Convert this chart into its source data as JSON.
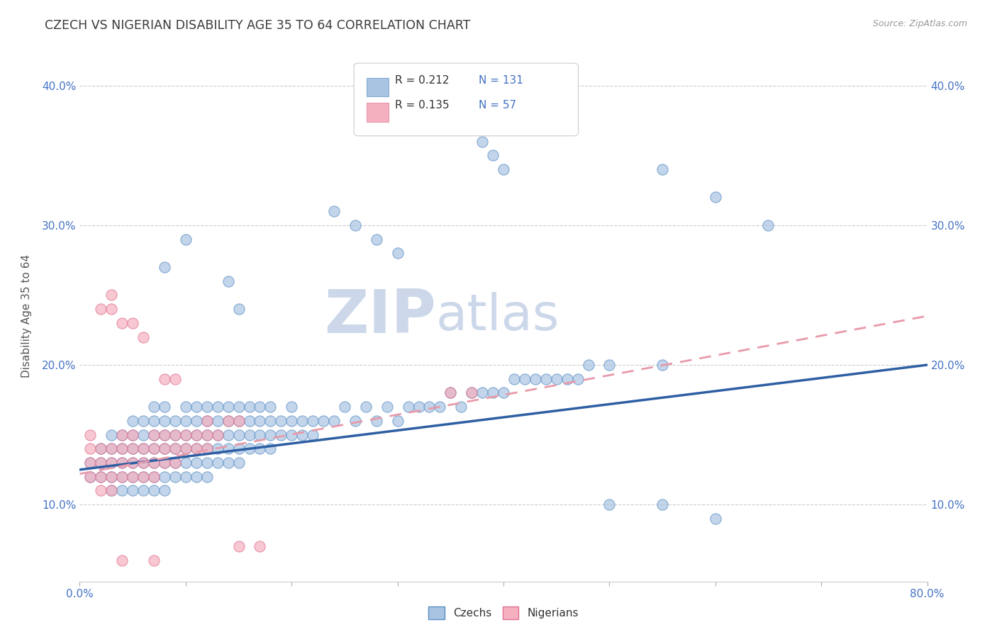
{
  "title": "CZECH VS NIGERIAN DISABILITY AGE 35 TO 64 CORRELATION CHART",
  "source_text": "Source: ZipAtlas.com",
  "ylabel": "Disability Age 35 to 64",
  "xlim": [
    0.0,
    0.8
  ],
  "ylim": [
    0.045,
    0.425
  ],
  "czech_R": 0.212,
  "czech_N": 131,
  "nigerian_R": 0.135,
  "nigerian_N": 57,
  "czech_color": "#a8c4e2",
  "czech_edge_color": "#5b8ec4",
  "nigerian_color": "#f5b0c0",
  "nigerian_edge_color": "#e07090",
  "czech_line_color": "#2e5fa3",
  "nigerian_line_color": "#e89aaa",
  "watermark_color": "#ccd8ea",
  "legend_label_czech": "Czechs",
  "legend_label_nigerian": "Nigerians",
  "ytick_positions": [
    0.1,
    0.2,
    0.3,
    0.4
  ],
  "ytick_labels": [
    "10.0%",
    "20.0%",
    "30.0%",
    "40.0%"
  ],
  "czech_scatter": [
    [
      0.01,
      0.13
    ],
    [
      0.01,
      0.12
    ],
    [
      0.02,
      0.12
    ],
    [
      0.02,
      0.13
    ],
    [
      0.02,
      0.14
    ],
    [
      0.03,
      0.11
    ],
    [
      0.03,
      0.12
    ],
    [
      0.03,
      0.13
    ],
    [
      0.03,
      0.14
    ],
    [
      0.03,
      0.15
    ],
    [
      0.04,
      0.11
    ],
    [
      0.04,
      0.12
    ],
    [
      0.04,
      0.13
    ],
    [
      0.04,
      0.14
    ],
    [
      0.04,
      0.15
    ],
    [
      0.05,
      0.11
    ],
    [
      0.05,
      0.12
    ],
    [
      0.05,
      0.13
    ],
    [
      0.05,
      0.14
    ],
    [
      0.05,
      0.15
    ],
    [
      0.05,
      0.16
    ],
    [
      0.06,
      0.11
    ],
    [
      0.06,
      0.12
    ],
    [
      0.06,
      0.13
    ],
    [
      0.06,
      0.14
    ],
    [
      0.06,
      0.15
    ],
    [
      0.06,
      0.16
    ],
    [
      0.07,
      0.11
    ],
    [
      0.07,
      0.12
    ],
    [
      0.07,
      0.13
    ],
    [
      0.07,
      0.14
    ],
    [
      0.07,
      0.15
    ],
    [
      0.07,
      0.16
    ],
    [
      0.07,
      0.17
    ],
    [
      0.08,
      0.11
    ],
    [
      0.08,
      0.12
    ],
    [
      0.08,
      0.13
    ],
    [
      0.08,
      0.14
    ],
    [
      0.08,
      0.15
    ],
    [
      0.08,
      0.16
    ],
    [
      0.08,
      0.17
    ],
    [
      0.09,
      0.12
    ],
    [
      0.09,
      0.13
    ],
    [
      0.09,
      0.14
    ],
    [
      0.09,
      0.15
    ],
    [
      0.09,
      0.16
    ],
    [
      0.1,
      0.12
    ],
    [
      0.1,
      0.13
    ],
    [
      0.1,
      0.14
    ],
    [
      0.1,
      0.15
    ],
    [
      0.1,
      0.16
    ],
    [
      0.1,
      0.17
    ],
    [
      0.11,
      0.12
    ],
    [
      0.11,
      0.13
    ],
    [
      0.11,
      0.14
    ],
    [
      0.11,
      0.15
    ],
    [
      0.11,
      0.16
    ],
    [
      0.11,
      0.17
    ],
    [
      0.12,
      0.12
    ],
    [
      0.12,
      0.13
    ],
    [
      0.12,
      0.14
    ],
    [
      0.12,
      0.15
    ],
    [
      0.12,
      0.16
    ],
    [
      0.12,
      0.17
    ],
    [
      0.13,
      0.13
    ],
    [
      0.13,
      0.14
    ],
    [
      0.13,
      0.15
    ],
    [
      0.13,
      0.16
    ],
    [
      0.13,
      0.17
    ],
    [
      0.14,
      0.13
    ],
    [
      0.14,
      0.14
    ],
    [
      0.14,
      0.15
    ],
    [
      0.14,
      0.16
    ],
    [
      0.14,
      0.17
    ],
    [
      0.15,
      0.13
    ],
    [
      0.15,
      0.14
    ],
    [
      0.15,
      0.15
    ],
    [
      0.15,
      0.16
    ],
    [
      0.15,
      0.17
    ],
    [
      0.16,
      0.14
    ],
    [
      0.16,
      0.15
    ],
    [
      0.16,
      0.16
    ],
    [
      0.16,
      0.17
    ],
    [
      0.17,
      0.14
    ],
    [
      0.17,
      0.15
    ],
    [
      0.17,
      0.16
    ],
    [
      0.17,
      0.17
    ],
    [
      0.18,
      0.14
    ],
    [
      0.18,
      0.15
    ],
    [
      0.18,
      0.16
    ],
    [
      0.18,
      0.17
    ],
    [
      0.19,
      0.15
    ],
    [
      0.19,
      0.16
    ],
    [
      0.2,
      0.15
    ],
    [
      0.2,
      0.16
    ],
    [
      0.2,
      0.17
    ],
    [
      0.21,
      0.15
    ],
    [
      0.21,
      0.16
    ],
    [
      0.22,
      0.15
    ],
    [
      0.22,
      0.16
    ],
    [
      0.23,
      0.16
    ],
    [
      0.24,
      0.16
    ],
    [
      0.25,
      0.17
    ],
    [
      0.26,
      0.16
    ],
    [
      0.27,
      0.17
    ],
    [
      0.28,
      0.16
    ],
    [
      0.29,
      0.17
    ],
    [
      0.3,
      0.16
    ],
    [
      0.31,
      0.17
    ],
    [
      0.32,
      0.17
    ],
    [
      0.33,
      0.17
    ],
    [
      0.34,
      0.17
    ],
    [
      0.35,
      0.18
    ],
    [
      0.36,
      0.17
    ],
    [
      0.37,
      0.18
    ],
    [
      0.38,
      0.18
    ],
    [
      0.39,
      0.18
    ],
    [
      0.4,
      0.18
    ],
    [
      0.41,
      0.19
    ],
    [
      0.42,
      0.19
    ],
    [
      0.43,
      0.19
    ],
    [
      0.44,
      0.19
    ],
    [
      0.45,
      0.19
    ],
    [
      0.46,
      0.19
    ],
    [
      0.47,
      0.19
    ],
    [
      0.48,
      0.2
    ],
    [
      0.5,
      0.2
    ],
    [
      0.55,
      0.2
    ],
    [
      0.08,
      0.27
    ],
    [
      0.1,
      0.29
    ],
    [
      0.14,
      0.26
    ],
    [
      0.15,
      0.24
    ],
    [
      0.24,
      0.31
    ],
    [
      0.26,
      0.3
    ],
    [
      0.28,
      0.29
    ],
    [
      0.3,
      0.28
    ],
    [
      0.35,
      0.37
    ],
    [
      0.38,
      0.36
    ],
    [
      0.39,
      0.35
    ],
    [
      0.4,
      0.34
    ],
    [
      0.55,
      0.34
    ],
    [
      0.6,
      0.32
    ],
    [
      0.65,
      0.3
    ],
    [
      0.5,
      0.1
    ],
    [
      0.55,
      0.1
    ],
    [
      0.6,
      0.09
    ]
  ],
  "nigerian_scatter": [
    [
      0.01,
      0.12
    ],
    [
      0.01,
      0.13
    ],
    [
      0.01,
      0.14
    ],
    [
      0.01,
      0.15
    ],
    [
      0.02,
      0.11
    ],
    [
      0.02,
      0.12
    ],
    [
      0.02,
      0.13
    ],
    [
      0.02,
      0.14
    ],
    [
      0.03,
      0.11
    ],
    [
      0.03,
      0.12
    ],
    [
      0.03,
      0.13
    ],
    [
      0.03,
      0.14
    ],
    [
      0.04,
      0.12
    ],
    [
      0.04,
      0.13
    ],
    [
      0.04,
      0.14
    ],
    [
      0.04,
      0.15
    ],
    [
      0.05,
      0.12
    ],
    [
      0.05,
      0.13
    ],
    [
      0.05,
      0.14
    ],
    [
      0.05,
      0.15
    ],
    [
      0.06,
      0.12
    ],
    [
      0.06,
      0.13
    ],
    [
      0.06,
      0.14
    ],
    [
      0.07,
      0.12
    ],
    [
      0.07,
      0.13
    ],
    [
      0.07,
      0.14
    ],
    [
      0.07,
      0.15
    ],
    [
      0.08,
      0.13
    ],
    [
      0.08,
      0.14
    ],
    [
      0.08,
      0.15
    ],
    [
      0.09,
      0.13
    ],
    [
      0.09,
      0.14
    ],
    [
      0.09,
      0.15
    ],
    [
      0.1,
      0.14
    ],
    [
      0.1,
      0.15
    ],
    [
      0.11,
      0.14
    ],
    [
      0.11,
      0.15
    ],
    [
      0.12,
      0.14
    ],
    [
      0.12,
      0.15
    ],
    [
      0.12,
      0.16
    ],
    [
      0.13,
      0.15
    ],
    [
      0.14,
      0.16
    ],
    [
      0.15,
      0.16
    ],
    [
      0.02,
      0.24
    ],
    [
      0.03,
      0.24
    ],
    [
      0.03,
      0.25
    ],
    [
      0.04,
      0.23
    ],
    [
      0.05,
      0.23
    ],
    [
      0.06,
      0.22
    ],
    [
      0.08,
      0.19
    ],
    [
      0.09,
      0.19
    ],
    [
      0.35,
      0.18
    ],
    [
      0.37,
      0.18
    ],
    [
      0.04,
      0.06
    ],
    [
      0.07,
      0.06
    ],
    [
      0.15,
      0.07
    ],
    [
      0.17,
      0.07
    ]
  ],
  "trend_line_x_start": 0.0,
  "trend_line_x_end": 0.8,
  "czech_trend_y_start": 0.125,
  "czech_trend_y_end": 0.2,
  "nigerian_trend_y_start": 0.122,
  "nigerian_trend_y_end": 0.235
}
